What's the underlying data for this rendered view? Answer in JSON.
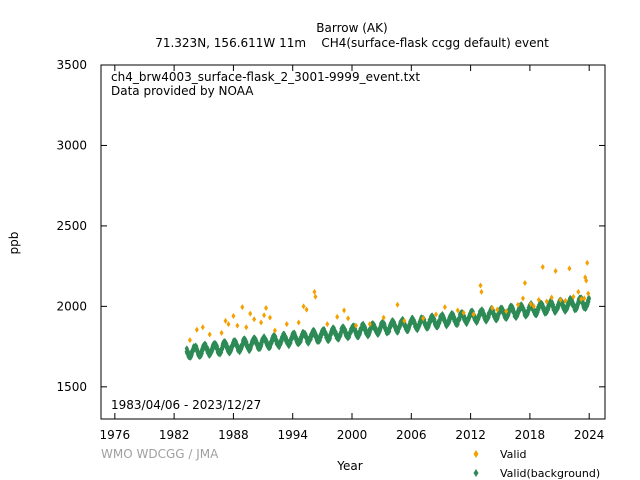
{
  "chart_data": {
    "type": "scatter",
    "title": "Barrow (AK)",
    "subtitle": "71.323N, 156.611W 11m    CH4(surface-flask ccgg default) event",
    "file_label": "ch4_brw4003_surface-flask_2_3001-9999_event.txt",
    "provider_label": "Data provided by NOAA",
    "date_range": "1983/04/06 - 2023/12/27",
    "credit": "WMO WDCGG / JMA",
    "xlabel": "Year",
    "ylabel": "ppb",
    "xlim": [
      1974.6,
      2025.6
    ],
    "ylim": [
      1300,
      3500
    ],
    "x_ticks": [
      "1976",
      "1982",
      "1988",
      "1994",
      "2000",
      "2006",
      "2012",
      "2018",
      "2024"
    ],
    "y_ticks": [
      "1500",
      "2000",
      "2500",
      "3000",
      "3500"
    ],
    "grid": false,
    "legend_position": "bottom-right",
    "series": [
      {
        "name": "Valid",
        "color": "#f5a000",
        "marker": "diamond",
        "points": [
          [
            1983.6,
            1790
          ],
          [
            1984.3,
            1855
          ],
          [
            1984.9,
            1870
          ],
          [
            1985.6,
            1825
          ],
          [
            1986.8,
            1835
          ],
          [
            1987.2,
            1910
          ],
          [
            1987.5,
            1890
          ],
          [
            1988.0,
            1940
          ],
          [
            1988.4,
            1880
          ],
          [
            1988.9,
            1995
          ],
          [
            1989.3,
            1870
          ],
          [
            1989.7,
            1955
          ],
          [
            1990.1,
            1920
          ],
          [
            1990.8,
            1900
          ],
          [
            1991.1,
            1945
          ],
          [
            1991.3,
            1990
          ],
          [
            1991.7,
            1930
          ],
          [
            1992.2,
            1850
          ],
          [
            1993.4,
            1890
          ],
          [
            1994.6,
            1900
          ],
          [
            1995.1,
            2000
          ],
          [
            1995.4,
            1980
          ],
          [
            1996.2,
            2090
          ],
          [
            1996.3,
            2060
          ],
          [
            1997.5,
            1890
          ],
          [
            1998.5,
            1935
          ],
          [
            1999.2,
            1975
          ],
          [
            1999.6,
            1925
          ],
          [
            2000.4,
            1880
          ],
          [
            2001.8,
            1890
          ],
          [
            2003.2,
            1930
          ],
          [
            2004.6,
            2010
          ],
          [
            2005.3,
            1910
          ],
          [
            2007.2,
            1925
          ],
          [
            2008.5,
            1950
          ],
          [
            2009.4,
            1995
          ],
          [
            2010.7,
            1975
          ],
          [
            2011.3,
            1960
          ],
          [
            2012.3,
            1950
          ],
          [
            2013.0,
            2130
          ],
          [
            2013.1,
            2090
          ],
          [
            2014.2,
            1990
          ],
          [
            2014.7,
            1980
          ],
          [
            2015.6,
            1970
          ],
          [
            2016.8,
            2010
          ],
          [
            2017.3,
            2050
          ],
          [
            2017.5,
            2145
          ],
          [
            2018.1,
            2015
          ],
          [
            2018.4,
            2000
          ],
          [
            2018.9,
            2040
          ],
          [
            2019.3,
            2245
          ],
          [
            2019.7,
            2030
          ],
          [
            2020.2,
            2055
          ],
          [
            2020.6,
            2220
          ],
          [
            2021.1,
            2040
          ],
          [
            2021.6,
            2035
          ],
          [
            2022.0,
            2235
          ],
          [
            2022.4,
            2060
          ],
          [
            2022.9,
            2090
          ],
          [
            2023.2,
            2045
          ],
          [
            2023.5,
            2050
          ],
          [
            2023.6,
            2180
          ],
          [
            2023.7,
            2160
          ],
          [
            2023.8,
            2270
          ],
          [
            2023.9,
            2080
          ]
        ]
      },
      {
        "name": "Valid(background)",
        "color": "#2e8b57",
        "marker": "diamond",
        "start_year": 1983.26,
        "end_year": 2023.99,
        "start_value": 1715,
        "end_value": 2025,
        "seasonal_amplitude": 28,
        "spread": 14
      }
    ]
  }
}
